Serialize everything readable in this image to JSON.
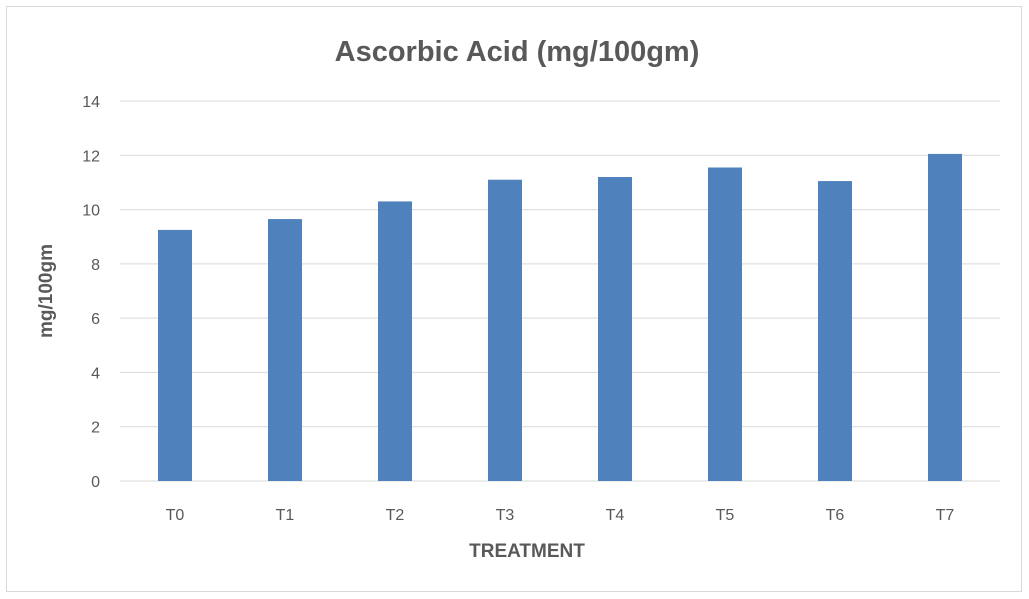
{
  "chart_data": {
    "type": "bar",
    "title": "Ascorbic Acid (mg/100gm)",
    "xlabel": "TREATMENT",
    "ylabel": "mg/100gm",
    "categories": [
      "T0",
      "T1",
      "T2",
      "T3",
      "T4",
      "T5",
      "T6",
      "T7"
    ],
    "values": [
      9.25,
      9.65,
      10.3,
      11.1,
      11.2,
      11.55,
      11.05,
      12.05
    ],
    "ylim": [
      0,
      14
    ],
    "yticks": [
      "0",
      "2",
      "4",
      "6",
      "8",
      "10",
      "12",
      "14"
    ],
    "grid": true,
    "legend": "none",
    "bar_color": "#4f81bd"
  }
}
